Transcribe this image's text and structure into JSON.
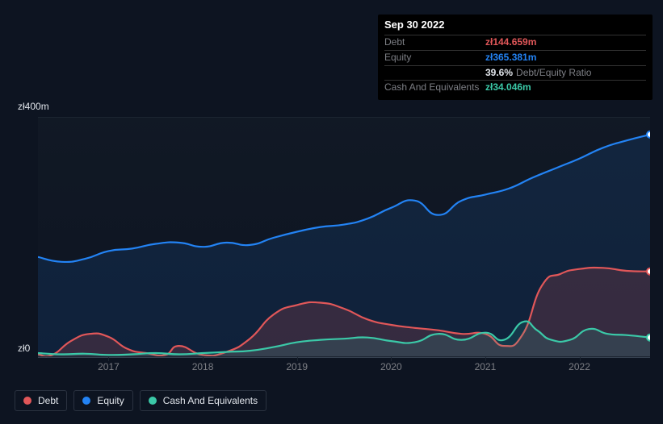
{
  "tooltip": {
    "title": "Sep 30 2022",
    "rows": [
      {
        "label": "Debt",
        "value": "zł144.659m",
        "color": "#e15759"
      },
      {
        "label": "Equity",
        "value": "zł365.381m",
        "color": "#2383f4"
      },
      {
        "label": "",
        "value": "39.6%",
        "sub": "Debt/Equity Ratio",
        "color": "#e1e5eb"
      },
      {
        "label": "Cash And Equivalents",
        "value": "zł34.046m",
        "color": "#3bc9a8"
      }
    ]
  },
  "chart": {
    "type": "area",
    "x_years": [
      2017,
      2018,
      2019,
      2020,
      2021,
      2022
    ],
    "x_label_color": "#7d7f85",
    "x_label_fontsize": 12,
    "y_labels": [
      {
        "text": "zł400m",
        "value": 400
      },
      {
        "text": "zł0",
        "value": 0
      }
    ],
    "y_label_color": "#e1e5eb",
    "y_label_fontsize": 12,
    "ylim": [
      0,
      400
    ],
    "xlim": [
      2016.25,
      2022.75
    ],
    "plot_background": "#0d1421",
    "grid_color": "#1c2531",
    "series": [
      {
        "name": "Equity",
        "color": "#2383f4",
        "fill_opacity": 0.12,
        "points": [
          [
            2016.25,
            168
          ],
          [
            2016.5,
            160
          ],
          [
            2016.75,
            165
          ],
          [
            2017.0,
            178
          ],
          [
            2017.25,
            182
          ],
          [
            2017.5,
            190
          ],
          [
            2017.75,
            192
          ],
          [
            2018.0,
            185
          ],
          [
            2018.25,
            192
          ],
          [
            2018.5,
            188
          ],
          [
            2018.75,
            200
          ],
          [
            2019.0,
            210
          ],
          [
            2019.25,
            218
          ],
          [
            2019.5,
            222
          ],
          [
            2019.75,
            232
          ],
          [
            2020.0,
            250
          ],
          [
            2020.25,
            262
          ],
          [
            2020.5,
            238
          ],
          [
            2020.75,
            262
          ],
          [
            2021.0,
            272
          ],
          [
            2021.25,
            282
          ],
          [
            2021.5,
            300
          ],
          [
            2021.75,
            316
          ],
          [
            2022.0,
            332
          ],
          [
            2022.25,
            350
          ],
          [
            2022.5,
            362
          ],
          [
            2022.75,
            372
          ]
        ]
      },
      {
        "name": "Debt",
        "color": "#e15759",
        "fill_opacity": 0.18,
        "points": [
          [
            2016.25,
            6
          ],
          [
            2016.4,
            5
          ],
          [
            2016.6,
            28
          ],
          [
            2016.8,
            40
          ],
          [
            2017.0,
            35
          ],
          [
            2017.2,
            15
          ],
          [
            2017.4,
            8
          ],
          [
            2017.6,
            5
          ],
          [
            2017.75,
            20
          ],
          [
            2018.0,
            5
          ],
          [
            2018.25,
            10
          ],
          [
            2018.5,
            32
          ],
          [
            2018.75,
            72
          ],
          [
            2019.0,
            88
          ],
          [
            2019.25,
            92
          ],
          [
            2019.5,
            82
          ],
          [
            2019.75,
            64
          ],
          [
            2020.0,
            55
          ],
          [
            2020.25,
            50
          ],
          [
            2020.5,
            46
          ],
          [
            2020.75,
            40
          ],
          [
            2021.0,
            40
          ],
          [
            2021.2,
            20
          ],
          [
            2021.4,
            40
          ],
          [
            2021.6,
            120
          ],
          [
            2021.8,
            140
          ],
          [
            2022.0,
            148
          ],
          [
            2022.25,
            150
          ],
          [
            2022.5,
            145
          ],
          [
            2022.75,
            144
          ]
        ]
      },
      {
        "name": "Cash And Equivalents",
        "color": "#3bc9a8",
        "fill_opacity": 0.14,
        "points": [
          [
            2016.25,
            8
          ],
          [
            2016.5,
            6
          ],
          [
            2016.75,
            7
          ],
          [
            2017.0,
            5
          ],
          [
            2017.25,
            6
          ],
          [
            2017.5,
            8
          ],
          [
            2017.75,
            6
          ],
          [
            2018.0,
            8
          ],
          [
            2018.25,
            10
          ],
          [
            2018.5,
            12
          ],
          [
            2018.75,
            18
          ],
          [
            2019.0,
            26
          ],
          [
            2019.25,
            30
          ],
          [
            2019.5,
            32
          ],
          [
            2019.75,
            34
          ],
          [
            2020.0,
            28
          ],
          [
            2020.25,
            26
          ],
          [
            2020.5,
            40
          ],
          [
            2020.75,
            30
          ],
          [
            2021.0,
            42
          ],
          [
            2021.2,
            30
          ],
          [
            2021.4,
            60
          ],
          [
            2021.55,
            46
          ],
          [
            2021.7,
            30
          ],
          [
            2021.9,
            30
          ],
          [
            2022.1,
            48
          ],
          [
            2022.3,
            40
          ],
          [
            2022.5,
            38
          ],
          [
            2022.75,
            34
          ]
        ]
      }
    ],
    "endcap_radius": 4
  },
  "legend": {
    "items": [
      {
        "name": "Debt",
        "color": "#e15759"
      },
      {
        "name": "Equity",
        "color": "#2383f4"
      },
      {
        "name": "Cash And Equivalents",
        "color": "#3bc9a8"
      }
    ],
    "border_color": "#2a3240",
    "text_color": "#e1e5eb",
    "fontsize": 12
  }
}
